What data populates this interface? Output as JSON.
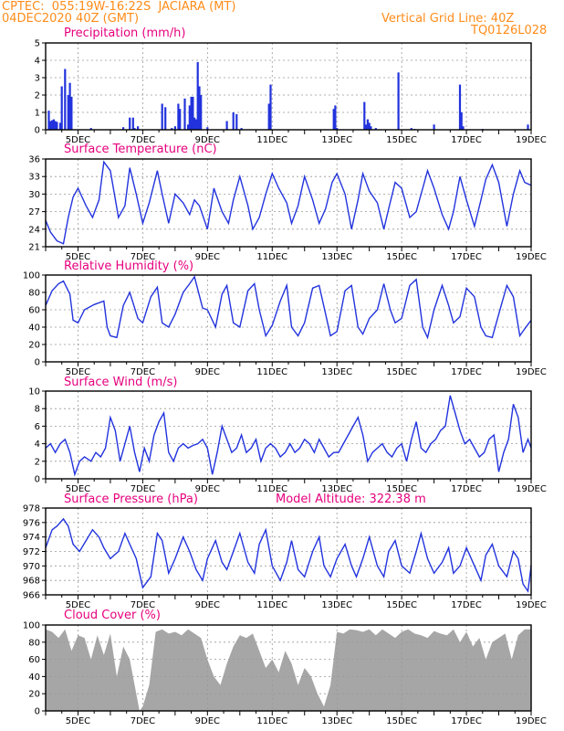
{
  "header": {
    "line1_left": "CPTEC:  055:19W-16:22S  JACIARA (MT)",
    "line2_left": "04DEC2020 40Z (GMT)",
    "line1_right": "Vertical Grid Line: 40Z",
    "line2_right": "TQ0126L028"
  },
  "colors": {
    "header": "#ff8c1a",
    "title": "#e6007e",
    "series": "#2233dd",
    "cloud": "#a6a6a6",
    "grid": "#999999"
  },
  "x_axis": {
    "day_labels": [
      "5DEC",
      "7DEC",
      "9DEC",
      "11DEC",
      "13DEC",
      "15DEC",
      "17DEC",
      "19DEC"
    ],
    "day_positions": [
      5,
      7,
      9,
      11,
      13,
      15,
      17,
      19
    ],
    "range_days": [
      4,
      19
    ]
  },
  "chart_data": [
    {
      "id": "precip",
      "type": "bar",
      "title": "Precipitation (mm/h)",
      "ylim": [
        0,
        5
      ],
      "yticks": [
        0,
        1,
        2,
        3,
        4,
        5
      ],
      "x": [
        4.1,
        4.15,
        4.2,
        4.25,
        4.3,
        4.35,
        4.45,
        4.5,
        4.6,
        4.7,
        4.75,
        4.8,
        5.4,
        6.4,
        6.6,
        6.7,
        6.75,
        6.85,
        7.6,
        7.7,
        7.9,
        8.0,
        8.1,
        8.15,
        8.3,
        8.4,
        8.45,
        8.5,
        8.55,
        8.6,
        8.65,
        8.7,
        8.75,
        8.8,
        9.0,
        9.6,
        9.8,
        9.9,
        10.05,
        10.9,
        10.95,
        12.9,
        12.95,
        13.0,
        13.85,
        13.9,
        13.95,
        14.0,
        14.05,
        14.2,
        14.9,
        15.3,
        15.4,
        16.0,
        16.8,
        16.85,
        16.9,
        17.5,
        18.9
      ],
      "values": [
        1.1,
        0.5,
        0.55,
        0.6,
        0.5,
        0.45,
        0.4,
        2.5,
        3.5,
        2.0,
        2.7,
        1.9,
        0.1,
        0.15,
        0.7,
        0.7,
        0.1,
        0.2,
        1.5,
        1.3,
        0.1,
        0.2,
        1.5,
        1.2,
        1.8,
        0.3,
        1.4,
        1.9,
        1.9,
        0.7,
        0.6,
        3.9,
        2.5,
        2.0,
        0.15,
        0.5,
        1.0,
        0.9,
        0.1,
        1.5,
        2.6,
        1.2,
        1.4,
        0.1,
        1.6,
        0.3,
        0.6,
        0.4,
        0.2,
        0.1,
        3.3,
        0.1,
        0.05,
        0.3,
        2.6,
        1.0,
        0.2,
        0.05,
        0.3
      ]
    },
    {
      "id": "temp",
      "type": "line",
      "title": "Surface Temperature (nC)",
      "ylim": [
        21,
        36
      ],
      "yticks": [
        21,
        24,
        27,
        30,
        33,
        36
      ],
      "x": [
        4.0,
        4.15,
        4.35,
        4.55,
        4.7,
        4.85,
        5.0,
        5.25,
        5.45,
        5.65,
        5.8,
        6.0,
        6.25,
        6.45,
        6.6,
        6.8,
        7.0,
        7.2,
        7.45,
        7.6,
        7.8,
        8.0,
        8.25,
        8.45,
        8.6,
        8.75,
        9.0,
        9.2,
        9.45,
        9.65,
        9.8,
        10.0,
        10.25,
        10.4,
        10.6,
        10.8,
        11.0,
        11.2,
        11.45,
        11.6,
        11.8,
        12.0,
        12.25,
        12.45,
        12.65,
        12.85,
        13.0,
        13.25,
        13.45,
        13.65,
        13.8,
        14.0,
        14.25,
        14.45,
        14.6,
        14.8,
        15.0,
        15.25,
        15.45,
        15.65,
        15.8,
        16.0,
        16.25,
        16.45,
        16.6,
        16.8,
        17.0,
        17.25,
        17.45,
        17.6,
        17.8,
        18.0,
        18.25,
        18.45,
        18.65,
        18.8,
        19.0
      ],
      "values": [
        25.5,
        23.5,
        22.0,
        21.5,
        26.0,
        29.5,
        31.0,
        28.0,
        26.0,
        29.0,
        35.5,
        34.0,
        26.0,
        28.0,
        34.5,
        30.0,
        25.0,
        28.5,
        34.0,
        30.0,
        25.0,
        30.0,
        28.5,
        26.5,
        29.0,
        28.0,
        24.0,
        31.0,
        27.0,
        25.0,
        29.0,
        33.0,
        28.0,
        24.0,
        26.0,
        30.0,
        33.5,
        31.0,
        28.5,
        25.0,
        28.0,
        33.0,
        29.0,
        25.0,
        27.5,
        32.0,
        33.5,
        30.0,
        24.0,
        29.0,
        33.5,
        30.5,
        28.5,
        24.0,
        27.5,
        32.0,
        31.0,
        26.0,
        27.0,
        31.0,
        34.0,
        31.0,
        26.5,
        24.0,
        27.0,
        33.0,
        29.0,
        24.5,
        29.0,
        32.5,
        35.0,
        32.0,
        24.5,
        30.0,
        34.0,
        32.0,
        31.5
      ]
    },
    {
      "id": "rh",
      "type": "line",
      "title": "Relative Humidity (%)",
      "ylim": [
        0,
        100
      ],
      "yticks": [
        0,
        20,
        40,
        60,
        80,
        100
      ],
      "x": [
        4.0,
        4.2,
        4.4,
        4.55,
        4.75,
        4.85,
        5.0,
        5.2,
        5.5,
        5.8,
        5.9,
        6.0,
        6.2,
        6.4,
        6.6,
        6.85,
        7.0,
        7.25,
        7.45,
        7.6,
        7.8,
        8.0,
        8.25,
        8.45,
        8.6,
        8.85,
        9.0,
        9.25,
        9.45,
        9.6,
        9.8,
        10.0,
        10.25,
        10.45,
        10.6,
        10.8,
        11.0,
        11.25,
        11.45,
        11.6,
        11.8,
        12.0,
        12.25,
        12.45,
        12.65,
        12.8,
        13.0,
        13.25,
        13.45,
        13.65,
        13.8,
        14.0,
        14.25,
        14.45,
        14.65,
        14.8,
        15.0,
        15.25,
        15.45,
        15.65,
        15.8,
        16.0,
        16.25,
        16.45,
        16.6,
        16.8,
        17.0,
        17.25,
        17.45,
        17.6,
        17.8,
        18.0,
        18.25,
        18.45,
        18.65,
        18.8,
        19.0
      ],
      "values": [
        65.0,
        82.0,
        90.0,
        93.0,
        78.0,
        48.0,
        45.0,
        60.0,
        66.0,
        70.0,
        40.0,
        30.0,
        28.0,
        65.0,
        80.0,
        50.0,
        45.0,
        75.0,
        86.0,
        45.0,
        40.0,
        55.0,
        80.0,
        90.0,
        98.0,
        62.0,
        60.0,
        40.0,
        78.0,
        88.0,
        45.0,
        40.0,
        82.0,
        90.0,
        60.0,
        30.0,
        42.0,
        70.0,
        88.0,
        40.0,
        30.0,
        45.0,
        85.0,
        88.0,
        55.0,
        30.0,
        35.0,
        82.0,
        88.0,
        40.0,
        32.0,
        50.0,
        60.0,
        90.0,
        60.0,
        45.0,
        50.0,
        88.0,
        95.0,
        40.0,
        28.0,
        60.0,
        88.0,
        65.0,
        45.0,
        52.0,
        85.0,
        75.0,
        40.0,
        30.0,
        28.0,
        55.0,
        88.0,
        75.0,
        30.0,
        38.0,
        48.0
      ]
    },
    {
      "id": "wind",
      "type": "line",
      "title": "Surface Wind (m/s)",
      "ylim": [
        0,
        10
      ],
      "yticks": [
        0,
        2,
        4,
        6,
        8,
        10
      ],
      "x": [
        4.0,
        4.15,
        4.3,
        4.45,
        4.6,
        4.75,
        4.9,
        5.05,
        5.2,
        5.4,
        5.55,
        5.7,
        5.85,
        6.0,
        6.15,
        6.3,
        6.45,
        6.6,
        6.75,
        6.9,
        7.05,
        7.2,
        7.35,
        7.5,
        7.65,
        7.8,
        7.95,
        8.1,
        8.25,
        8.4,
        8.55,
        8.7,
        8.85,
        9.0,
        9.15,
        9.3,
        9.45,
        9.6,
        9.75,
        9.9,
        10.05,
        10.2,
        10.35,
        10.5,
        10.65,
        10.8,
        10.95,
        11.1,
        11.25,
        11.4,
        11.55,
        11.7,
        11.85,
        12.0,
        12.15,
        12.3,
        12.45,
        12.6,
        12.75,
        12.9,
        13.05,
        13.2,
        13.35,
        13.5,
        13.65,
        13.8,
        13.95,
        14.1,
        14.25,
        14.4,
        14.55,
        14.7,
        14.85,
        15.0,
        15.15,
        15.3,
        15.45,
        15.6,
        15.75,
        15.9,
        16.05,
        16.2,
        16.35,
        16.5,
        16.65,
        16.8,
        16.95,
        17.1,
        17.25,
        17.4,
        17.55,
        17.7,
        17.85,
        18.0,
        18.15,
        18.3,
        18.45,
        18.6,
        18.75,
        18.9,
        19.0
      ],
      "values": [
        3.5,
        4.0,
        3.0,
        4.0,
        4.5,
        3.0,
        0.5,
        2.0,
        2.5,
        2.0,
        3.0,
        2.5,
        3.5,
        7.0,
        5.5,
        2.0,
        4.0,
        6.0,
        3.0,
        0.8,
        3.5,
        2.0,
        5.0,
        6.5,
        7.5,
        3.0,
        2.0,
        3.5,
        4.0,
        3.5,
        3.8,
        4.0,
        4.5,
        3.5,
        0.5,
        3.0,
        6.0,
        4.5,
        3.0,
        3.5,
        5.0,
        3.0,
        3.5,
        4.5,
        2.0,
        3.5,
        4.0,
        3.5,
        2.5,
        3.0,
        4.0,
        3.0,
        3.5,
        4.5,
        4.0,
        3.0,
        4.5,
        3.5,
        2.5,
        3.0,
        3.0,
        4.0,
        5.0,
        6.0,
        7.0,
        5.0,
        2.0,
        3.0,
        3.5,
        4.0,
        3.0,
        2.5,
        3.5,
        4.0,
        2.0,
        4.5,
        6.5,
        3.5,
        3.0,
        4.0,
        4.5,
        5.5,
        6.0,
        9.5,
        7.5,
        5.5,
        4.0,
        4.5,
        3.5,
        2.5,
        3.0,
        4.5,
        5.0,
        0.8,
        3.0,
        4.5,
        8.5,
        7.0,
        3.0,
        4.5,
        3.5
      ]
    },
    {
      "id": "pressure",
      "type": "line",
      "title": "Surface Pressure (hPa)",
      "subtitle": "Model Altitude: 322.38 m",
      "ylim": [
        966,
        978
      ],
      "yticks": [
        966,
        968,
        970,
        972,
        974,
        976,
        978
      ],
      "x": [
        4.0,
        4.2,
        4.35,
        4.55,
        4.7,
        4.85,
        5.05,
        5.25,
        5.45,
        5.65,
        5.8,
        6.0,
        6.25,
        6.45,
        6.6,
        6.8,
        7.0,
        7.25,
        7.45,
        7.6,
        7.8,
        8.0,
        8.25,
        8.45,
        8.65,
        8.85,
        9.0,
        9.25,
        9.45,
        9.6,
        9.8,
        10.0,
        10.25,
        10.45,
        10.6,
        10.8,
        11.0,
        11.25,
        11.45,
        11.6,
        11.8,
        12.0,
        12.25,
        12.45,
        12.6,
        12.8,
        13.0,
        13.25,
        13.45,
        13.6,
        13.8,
        14.0,
        14.25,
        14.45,
        14.6,
        14.8,
        15.0,
        15.25,
        15.45,
        15.6,
        15.8,
        16.0,
        16.25,
        16.45,
        16.6,
        16.8,
        17.0,
        17.25,
        17.45,
        17.6,
        17.8,
        18.0,
        18.25,
        18.45,
        18.6,
        18.75,
        18.9,
        19.0
      ],
      "values": [
        972.5,
        975.0,
        975.5,
        976.5,
        975.5,
        973.0,
        972.0,
        973.5,
        975.0,
        974.0,
        972.5,
        971.0,
        972.0,
        974.5,
        973.0,
        971.0,
        967.0,
        968.5,
        974.5,
        973.5,
        969.0,
        971.0,
        974.0,
        972.0,
        969.5,
        968.0,
        971.0,
        973.5,
        970.5,
        969.5,
        972.0,
        974.5,
        970.5,
        969.0,
        973.0,
        975.0,
        970.0,
        968.0,
        970.5,
        973.5,
        969.5,
        968.5,
        972.0,
        974.0,
        970.0,
        968.5,
        971.0,
        973.0,
        970.0,
        968.5,
        971.0,
        974.0,
        970.0,
        968.5,
        972.0,
        973.5,
        970.0,
        969.0,
        972.0,
        974.5,
        971.0,
        969.0,
        970.5,
        972.5,
        969.0,
        970.0,
        972.5,
        970.0,
        968.0,
        971.5,
        973.0,
        970.0,
        968.5,
        972.0,
        971.0,
        967.5,
        966.5,
        970.0
      ]
    },
    {
      "id": "cloud",
      "type": "area",
      "title": "Cloud Cover (%)",
      "ylim": [
        0,
        100
      ],
      "yticks": [
        0,
        20,
        40,
        60,
        80,
        100
      ],
      "x": [
        4.0,
        4.2,
        4.4,
        4.6,
        4.8,
        5.0,
        5.2,
        5.4,
        5.6,
        5.8,
        6.0,
        6.2,
        6.4,
        6.6,
        6.8,
        6.9,
        7.0,
        7.2,
        7.4,
        7.6,
        7.8,
        8.0,
        8.2,
        8.4,
        8.6,
        8.8,
        9.0,
        9.2,
        9.4,
        9.6,
        9.8,
        10.0,
        10.2,
        10.4,
        10.6,
        10.8,
        11.0,
        11.2,
        11.4,
        11.6,
        11.8,
        12.0,
        12.2,
        12.4,
        12.6,
        12.8,
        13.0,
        13.2,
        13.4,
        13.6,
        13.8,
        14.0,
        14.2,
        14.4,
        14.6,
        14.8,
        15.0,
        15.2,
        15.4,
        15.6,
        15.8,
        16.0,
        16.2,
        16.4,
        16.6,
        16.8,
        17.0,
        17.2,
        17.4,
        17.6,
        17.8,
        18.0,
        18.2,
        18.4,
        18.6,
        18.8,
        19.0
      ],
      "values": [
        95,
        92,
        85,
        95,
        70,
        88,
        85,
        60,
        88,
        65,
        90,
        40,
        75,
        60,
        20,
        0,
        5,
        30,
        92,
        95,
        90,
        92,
        88,
        95,
        90,
        85,
        60,
        40,
        30,
        55,
        75,
        88,
        85,
        90,
        70,
        50,
        60,
        45,
        70,
        55,
        30,
        50,
        40,
        20,
        5,
        30,
        92,
        90,
        95,
        94,
        92,
        95,
        88,
        95,
        90,
        85,
        92,
        95,
        90,
        88,
        85,
        93,
        90,
        88,
        95,
        80,
        92,
        75,
        85,
        60,
        80,
        85,
        90,
        60,
        88,
        95,
        95
      ]
    }
  ]
}
